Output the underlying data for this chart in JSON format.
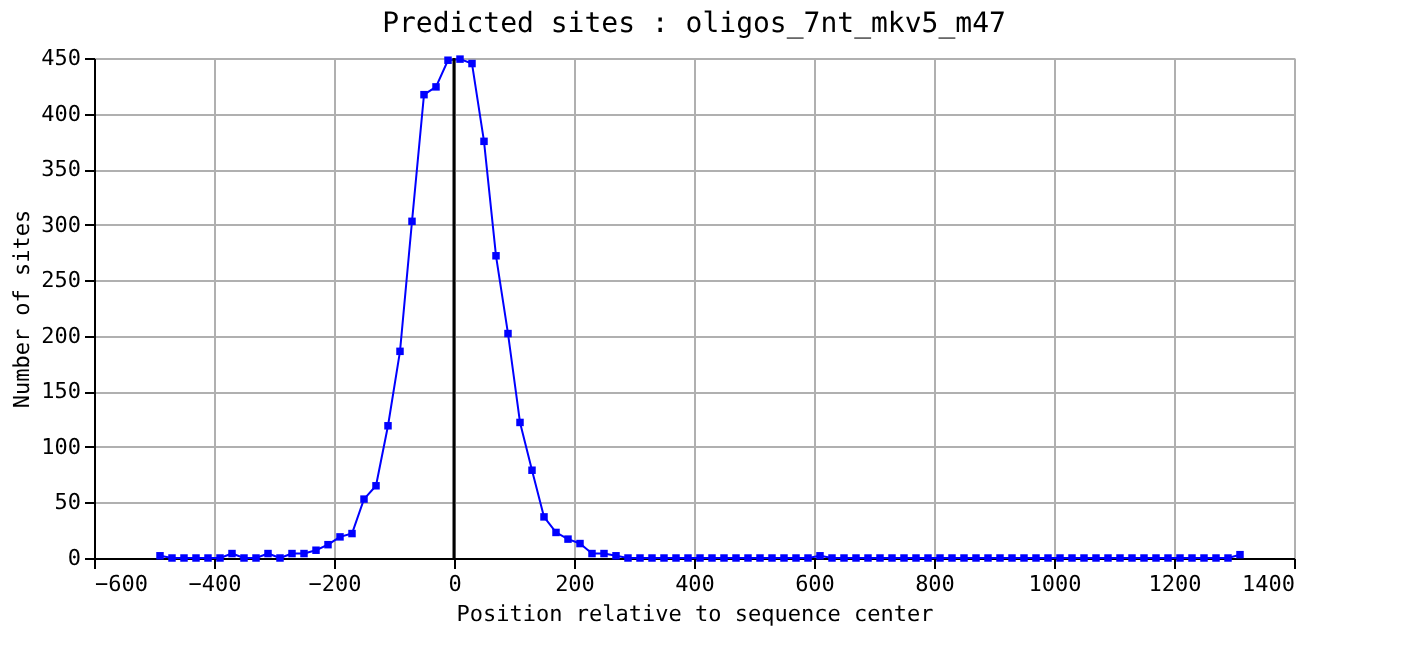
{
  "chart_data": {
    "type": "line",
    "title": "Predicted sites : oligos_7nt_mkv5_m47",
    "xlabel": "Position relative to sequence center",
    "ylabel": "Number of sites",
    "x": [
      -490,
      -470,
      -450,
      -430,
      -410,
      -390,
      -370,
      -350,
      -330,
      -310,
      -290,
      -270,
      -250,
      -230,
      -210,
      -190,
      -170,
      -150,
      -130,
      -110,
      -90,
      -70,
      -50,
      -30,
      -10,
      10,
      30,
      50,
      70,
      90,
      110,
      130,
      150,
      170,
      190,
      210,
      230,
      250,
      270,
      290,
      310,
      330,
      350,
      370,
      390,
      410,
      430,
      450,
      470,
      490,
      510,
      530,
      550,
      570,
      590,
      610,
      630,
      650,
      670,
      690,
      710,
      730,
      750,
      770,
      790,
      810,
      830,
      850,
      870,
      890,
      910,
      930,
      950,
      970,
      990,
      1010,
      1030,
      1050,
      1070,
      1090,
      1110,
      1130,
      1150,
      1170,
      1190,
      1210,
      1230,
      1250,
      1270,
      1290,
      1310
    ],
    "series": [
      {
        "color": "#0000ff",
        "values": [
          2,
          0,
          0,
          0,
          0,
          0,
          4,
          0,
          0,
          4,
          0,
          4,
          4,
          7,
          12,
          19,
          22,
          53,
          65,
          119,
          186,
          303,
          417,
          424,
          448,
          449,
          445,
          375,
          272,
          202,
          122,
          79,
          37,
          23,
          17,
          13,
          4,
          4,
          2,
          0,
          0,
          0,
          0,
          0,
          0,
          0,
          0,
          0,
          0,
          0,
          0,
          0,
          0,
          0,
          0,
          2,
          0,
          0,
          0,
          0,
          0,
          0,
          0,
          0,
          0,
          0,
          0,
          0,
          0,
          0,
          0,
          0,
          0,
          0,
          0,
          0,
          0,
          0,
          0,
          0,
          0,
          0,
          0,
          0,
          0,
          0,
          0,
          0,
          0,
          0,
          3
        ]
      }
    ],
    "xlim": [
      -600,
      1400
    ],
    "xticks": [
      -600,
      -400,
      -200,
      0,
      200,
      400,
      600,
      800,
      1000,
      1200,
      1400
    ],
    "ylim": [
      0,
      450
    ],
    "yticks": [
      0,
      50,
      100,
      150,
      200,
      250,
      300,
      350,
      400,
      450
    ],
    "ref_lines": [
      {
        "axis": "x",
        "value": 0,
        "color": "#000000"
      }
    ],
    "grid": true,
    "marker": "square",
    "line_style": "solid"
  }
}
